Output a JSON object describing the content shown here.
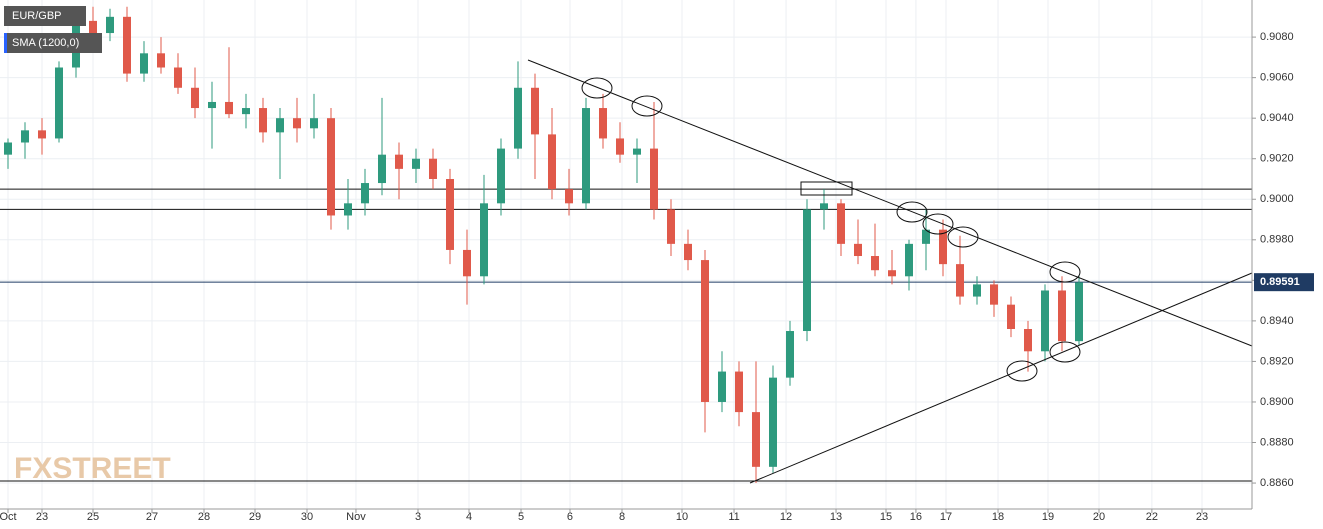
{
  "chart_data": {
    "type": "candlestick",
    "symbol": "EUR/GBP",
    "indicator": "SMA (1200,0)",
    "watermark": "FXSTREET",
    "up_color": "#2e9a7e",
    "down_color": "#e0594a",
    "candles": [
      [
        0.9022,
        0.903,
        0.9015,
        0.9028
      ],
      [
        0.9028,
        0.9038,
        0.902,
        0.9034
      ],
      [
        0.9034,
        0.904,
        0.9022,
        0.903
      ],
      [
        0.903,
        0.9068,
        0.9028,
        0.9065
      ],
      [
        0.9065,
        0.9092,
        0.906,
        0.9088
      ],
      [
        0.9088,
        0.9095,
        0.9075,
        0.9082
      ],
      [
        0.9082,
        0.9094,
        0.9078,
        0.909
      ],
      [
        0.909,
        0.9095,
        0.9058,
        0.9062
      ],
      [
        0.9062,
        0.9078,
        0.9058,
        0.9072
      ],
      [
        0.9072,
        0.908,
        0.9062,
        0.9065
      ],
      [
        0.9065,
        0.9072,
        0.9052,
        0.9055
      ],
      [
        0.9055,
        0.9065,
        0.904,
        0.9045
      ],
      [
        0.9045,
        0.9058,
        0.9025,
        0.9048
      ],
      [
        0.9048,
        0.9075,
        0.904,
        0.9042
      ],
      [
        0.9042,
        0.9052,
        0.9035,
        0.9045
      ],
      [
        0.9045,
        0.905,
        0.9028,
        0.9033
      ],
      [
        0.9033,
        0.9045,
        0.901,
        0.904
      ],
      [
        0.904,
        0.905,
        0.9028,
        0.9035
      ],
      [
        0.9035,
        0.9052,
        0.903,
        0.904
      ],
      [
        0.904,
        0.9045,
        0.8985,
        0.8992
      ],
      [
        0.8992,
        0.901,
        0.8985,
        0.8998
      ],
      [
        0.8998,
        0.9015,
        0.8992,
        0.9008
      ],
      [
        0.9008,
        0.905,
        0.9002,
        0.9022
      ],
      [
        0.9022,
        0.9028,
        0.9,
        0.9015
      ],
      [
        0.9015,
        0.9025,
        0.9008,
        0.902
      ],
      [
        0.902,
        0.9025,
        0.9005,
        0.901
      ],
      [
        0.901,
        0.9015,
        0.8968,
        0.8975
      ],
      [
        0.8975,
        0.8985,
        0.8948,
        0.8962
      ],
      [
        0.8962,
        0.9012,
        0.8958,
        0.8998
      ],
      [
        0.8998,
        0.903,
        0.8992,
        0.9025
      ],
      [
        0.9025,
        0.9068,
        0.902,
        0.9055
      ],
      [
        0.9055,
        0.9062,
        0.901,
        0.9032
      ],
      [
        0.9032,
        0.9045,
        0.9,
        0.9005
      ],
      [
        0.9005,
        0.9015,
        0.8992,
        0.8998
      ],
      [
        0.8998,
        0.905,
        0.8995,
        0.9045
      ],
      [
        0.9045,
        0.9052,
        0.9025,
        0.903
      ],
      [
        0.903,
        0.9038,
        0.9018,
        0.9022
      ],
      [
        0.9022,
        0.903,
        0.9008,
        0.9025
      ],
      [
        0.9025,
        0.9048,
        0.899,
        0.8995
      ],
      [
        0.8995,
        0.9,
        0.8972,
        0.8978
      ],
      [
        0.8978,
        0.8985,
        0.8965,
        0.897
      ],
      [
        0.897,
        0.8975,
        0.8885,
        0.89
      ],
      [
        0.89,
        0.8925,
        0.8895,
        0.8915
      ],
      [
        0.8915,
        0.892,
        0.8888,
        0.8895
      ],
      [
        0.8895,
        0.892,
        0.886,
        0.8868
      ],
      [
        0.8868,
        0.8918,
        0.8865,
        0.8912
      ],
      [
        0.8912,
        0.894,
        0.8908,
        0.8935
      ],
      [
        0.8935,
        0.9,
        0.893,
        0.8995
      ],
      [
        0.8995,
        0.9005,
        0.8985,
        0.8998
      ],
      [
        0.8998,
        0.9,
        0.8972,
        0.8978
      ],
      [
        0.8978,
        0.899,
        0.8968,
        0.8972
      ],
      [
        0.8972,
        0.8988,
        0.8962,
        0.8965
      ],
      [
        0.8965,
        0.8975,
        0.8958,
        0.8962
      ],
      [
        0.8962,
        0.898,
        0.8955,
        0.8978
      ],
      [
        0.8978,
        0.8995,
        0.8965,
        0.8985
      ],
      [
        0.8985,
        0.899,
        0.8962,
        0.8968
      ],
      [
        0.8968,
        0.8982,
        0.8948,
        0.8952
      ],
      [
        0.8952,
        0.8962,
        0.8948,
        0.8958
      ],
      [
        0.8958,
        0.896,
        0.8942,
        0.8948
      ],
      [
        0.8948,
        0.8952,
        0.8932,
        0.8936
      ],
      [
        0.8936,
        0.894,
        0.8915,
        0.8925
      ],
      [
        0.8925,
        0.8958,
        0.892,
        0.8955
      ],
      [
        0.8955,
        0.8962,
        0.8925,
        0.893
      ],
      [
        0.893,
        0.8962,
        0.8928,
        0.8959
      ]
    ],
    "levels": [
      0.9005,
      0.8995,
      0.8861
    ],
    "last_price": 0.89591,
    "last_price_color": "#1f3b63",
    "ylim": [
      0.88472,
      0.90983
    ],
    "yticks": [
      {
        "value": 0.886,
        "label": "0.8860"
      },
      {
        "value": 0.888,
        "label": "0.8880"
      },
      {
        "value": 0.89,
        "label": "0.8900"
      },
      {
        "value": 0.892,
        "label": "0.8920"
      },
      {
        "value": 0.894,
        "label": "0.8940"
      },
      {
        "value": 0.896,
        "label": "0.8960"
      },
      {
        "value": 0.898,
        "label": "0.8980"
      },
      {
        "value": 0.9,
        "label": "0.9000"
      },
      {
        "value": 0.902,
        "label": "0.9020"
      },
      {
        "value": 0.904,
        "label": "0.9040"
      },
      {
        "value": 0.906,
        "label": "0.9060"
      },
      {
        "value": 0.908,
        "label": "0.9080"
      }
    ],
    "xlim": [
      0,
      73.65
    ],
    "xticks": [
      {
        "value": 0.47,
        "label": "Oct"
      },
      {
        "value": 2.47,
        "label": "23"
      },
      {
        "value": 5.47,
        "label": "25"
      },
      {
        "value": 8.94,
        "label": "27"
      },
      {
        "value": 12,
        "label": "28"
      },
      {
        "value": 15,
        "label": "29"
      },
      {
        "value": 18.06,
        "label": "30"
      },
      {
        "value": 20.94,
        "label": "Nov"
      },
      {
        "value": 24.59,
        "label": "3"
      },
      {
        "value": 27.59,
        "label": "4"
      },
      {
        "value": 30.65,
        "label": "5"
      },
      {
        "value": 33.53,
        "label": "6"
      },
      {
        "value": 36.59,
        "label": "8"
      },
      {
        "value": 40.12,
        "label": "10"
      },
      {
        "value": 43.18,
        "label": "11"
      },
      {
        "value": 46.24,
        "label": "12"
      },
      {
        "value": 49.18,
        "label": "13"
      },
      {
        "value": 52.12,
        "label": "15"
      },
      {
        "value": 53.88,
        "label": "16"
      },
      {
        "value": 55.65,
        "label": "17"
      },
      {
        "value": 58.71,
        "label": "18"
      },
      {
        "value": 61.65,
        "label": "19"
      },
      {
        "value": 64.65,
        "label": "20"
      },
      {
        "value": 67.76,
        "label": "22"
      },
      {
        "value": 70.71,
        "label": "23"
      }
    ],
    "grid": true
  }
}
